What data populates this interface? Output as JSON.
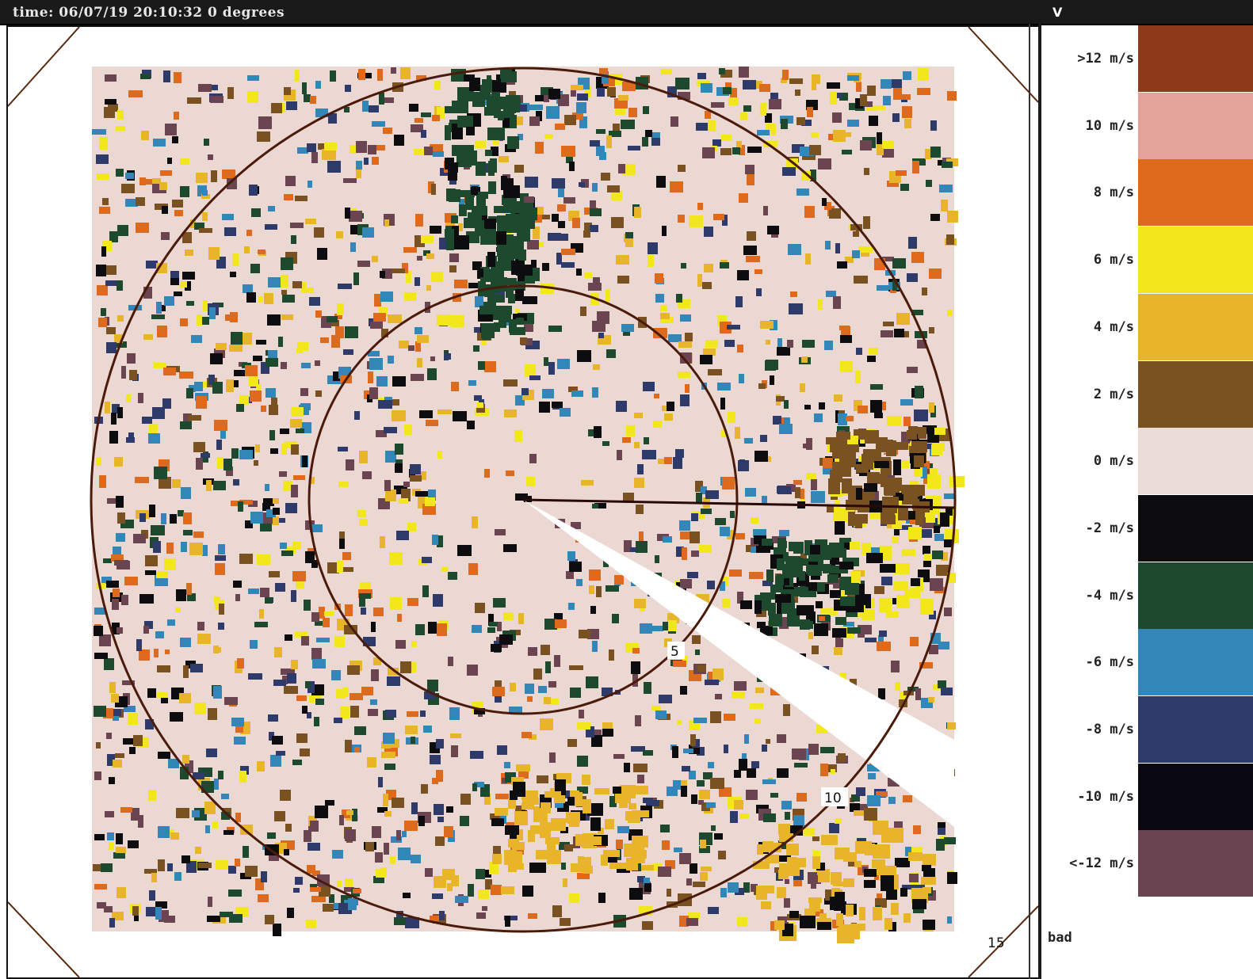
{
  "window": {
    "title": "time: 06/07/19 20:10:32 0 degrees",
    "corner_label": "V"
  },
  "plot": {
    "range_ring_labels": [
      "5",
      "10",
      "15"
    ]
  },
  "legend": {
    "items": [
      {
        "label": ">12 m/s",
        "color": "#8e3a1a"
      },
      {
        "label": "10 m/s",
        "color": "#e3a29a"
      },
      {
        "label": "8 m/s",
        "color": "#de6a1e"
      },
      {
        "label": "6 m/s",
        "color": "#f2e71a"
      },
      {
        "label": "4 m/s",
        "color": "#e8b42a"
      },
      {
        "label": "2 m/s",
        "color": "#7a5222"
      },
      {
        "label": "0 m/s",
        "color": "#ecdcd8"
      },
      {
        "label": "-2 m/s",
        "color": "#0d0d10"
      },
      {
        "label": "-4 m/s",
        "color": "#1d4a2e"
      },
      {
        "label": "-6 m/s",
        "color": "#3286b8"
      },
      {
        "label": "-8 m/s",
        "color": "#2e3a6a"
      },
      {
        "label": "-10 m/s",
        "color": "#0a0810"
      },
      {
        "label": "<-12 m/s",
        "color": "#6a4450"
      }
    ],
    "bad_label": "bad"
  }
}
